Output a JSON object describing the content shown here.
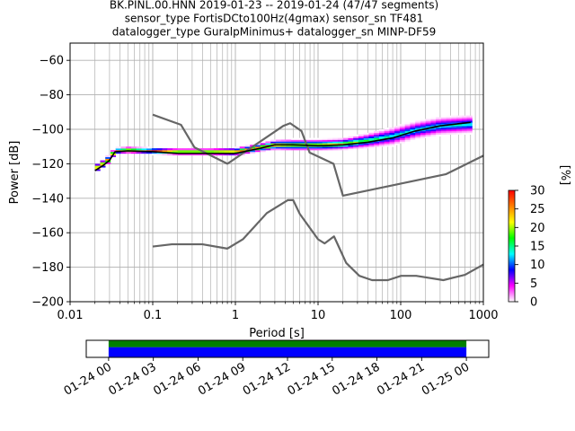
{
  "title_lines": [
    "BK.PINL.00.HNN   2019-01-23 -- 2019-01-24  (47/47 segments)",
    "sensor_type FortisDCto100Hz(4gmax) sensor_sn TF481",
    "datalogger_type GuralpMinimus+ datalogger_sn MINP-DF59"
  ],
  "chart_data": [
    {
      "type": "heatmap",
      "subtype": "probabilistic-power-spectral-density",
      "xlabel": "Period [s]",
      "ylabel": "Power [dB]",
      "xscale": "log",
      "xlim": [
        0.01,
        1000
      ],
      "ylim": [
        -200,
        -50
      ],
      "x_ticks": [
        0.01,
        0.1,
        1,
        10,
        100,
        1000
      ],
      "x_tick_labels": [
        "0.01",
        "0.1",
        "1",
        "10",
        "100",
        "1000"
      ],
      "y_ticks": [
        -200,
        -180,
        -160,
        -140,
        -120,
        -100,
        -80,
        -60
      ],
      "y_tick_labels": [
        "−200",
        "−180",
        "−160",
        "−140",
        "−120",
        "−100",
        "−80",
        "−60"
      ],
      "grid": true,
      "colorbar": {
        "label": "[%]",
        "range": [
          0,
          30
        ],
        "ticks": [
          0,
          5,
          10,
          15,
          20,
          25,
          30
        ],
        "tick_labels": [
          "0",
          "5",
          "10",
          "15",
          "20",
          "25",
          "30"
        ],
        "colors": [
          "#ffffff",
          "#ff00ff",
          "#0000ff",
          "#00ffff",
          "#00ff00",
          "#ffff00",
          "#ff8000",
          "#ff0000"
        ]
      },
      "mode_curve": {
        "color": "#000000",
        "points": [
          [
            0.02,
            -124
          ],
          [
            0.025,
            -121
          ],
          [
            0.03,
            -118
          ],
          [
            0.035,
            -113
          ],
          [
            0.05,
            -112.5
          ],
          [
            0.1,
            -113
          ],
          [
            0.2,
            -114
          ],
          [
            0.5,
            -114
          ],
          [
            1,
            -114
          ],
          [
            2,
            -111
          ],
          [
            3,
            -109
          ],
          [
            5,
            -109
          ],
          [
            10,
            -109.5
          ],
          [
            20,
            -109
          ],
          [
            40,
            -107.5
          ],
          [
            80,
            -105
          ],
          [
            150,
            -101
          ],
          [
            300,
            -98
          ],
          [
            700,
            -96
          ]
        ]
      },
      "density_band": [
        {
          "period": 0.02,
          "center": -123,
          "half_width": 2
        },
        {
          "period": 0.025,
          "center": -120,
          "half_width": 2
        },
        {
          "period": 0.03,
          "center": -117,
          "half_width": 2
        },
        {
          "period": 0.035,
          "center": -112.5,
          "half_width": 1.5
        },
        {
          "period": 0.05,
          "center": -112,
          "half_width": 1.5
        },
        {
          "period": 0.1,
          "center": -112.5,
          "half_width": 1.5
        },
        {
          "period": 0.2,
          "center": -113,
          "half_width": 1.5
        },
        {
          "period": 0.5,
          "center": -113,
          "half_width": 1.5
        },
        {
          "period": 1,
          "center": -113,
          "half_width": 2
        },
        {
          "period": 2,
          "center": -110.5,
          "half_width": 2
        },
        {
          "period": 3,
          "center": -109,
          "half_width": 2.5
        },
        {
          "period": 5,
          "center": -109,
          "half_width": 3
        },
        {
          "period": 10,
          "center": -109,
          "half_width": 3
        },
        {
          "period": 20,
          "center": -108.5,
          "half_width": 3
        },
        {
          "period": 40,
          "center": -106.5,
          "half_width": 4
        },
        {
          "period": 80,
          "center": -104,
          "half_width": 5
        },
        {
          "period": 150,
          "center": -100.5,
          "half_width": 5
        },
        {
          "period": 300,
          "center": -98,
          "half_width": 5
        },
        {
          "period": 700,
          "center": -97,
          "half_width": 5
        }
      ],
      "reference_curves": [
        {
          "role": "high-noise-model",
          "color": "#666666",
          "points": [
            [
              0.1,
              -91.5
            ],
            [
              0.22,
              -97.4
            ],
            [
              0.32,
              -110.5
            ],
            [
              0.8,
              -120
            ],
            [
              3.8,
              -98
            ],
            [
              4.6,
              -96.5
            ],
            [
              6.3,
              -101
            ],
            [
              7.9,
              -113.5
            ],
            [
              15.4,
              -120
            ],
            [
              20,
              -138.5
            ],
            [
              354.8,
              -126
            ],
            [
              10000,
              -91.5
            ]
          ]
        },
        {
          "role": "low-noise-model",
          "color": "#666666",
          "points": [
            [
              0.1,
              -168
            ],
            [
              0.17,
              -166.7
            ],
            [
              0.4,
              -166.7
            ],
            [
              0.8,
              -169.2
            ],
            [
              1.24,
              -163.7
            ],
            [
              2.4,
              -148.6
            ],
            [
              4.3,
              -141.1
            ],
            [
              5,
              -141.1
            ],
            [
              6,
              -149
            ],
            [
              10,
              -163.8
            ],
            [
              12,
              -166.2
            ],
            [
              15.6,
              -162.1
            ],
            [
              21.9,
              -177.5
            ],
            [
              31.6,
              -185
            ],
            [
              45,
              -187.5
            ],
            [
              70,
              -187.5
            ],
            [
              101,
              -185
            ],
            [
              154,
              -185
            ],
            [
              328,
              -187.5
            ],
            [
              600,
              -184.4
            ],
            [
              10000,
              -151.5
            ]
          ]
        }
      ]
    },
    {
      "type": "timeline",
      "subtype": "data-coverage",
      "xlim": [
        "2019-01-23 22:30",
        "2019-01-25 01:30"
      ],
      "x_ticks": [
        "2019-01-24 00:00",
        "2019-01-24 03:00",
        "2019-01-24 06:00",
        "2019-01-24 09:00",
        "2019-01-24 12:00",
        "2019-01-24 15:00",
        "2019-01-24 18:00",
        "2019-01-24 21:00",
        "2019-01-25 00:00"
      ],
      "x_tick_labels": [
        "01-24 00",
        "01-24 03",
        "01-24 06",
        "01-24 09",
        "01-24 12",
        "01-24 15",
        "01-24 18",
        "01-24 21",
        "01-25 00"
      ],
      "tick_label_rotation_deg": 30,
      "series": [
        {
          "role": "data-available",
          "color": "#0000ff",
          "start": "2019-01-24 00:00",
          "end": "2019-01-25 00:00"
        },
        {
          "role": "used-in-psd",
          "color": "#008000",
          "start": "2019-01-24 00:00",
          "end": "2019-01-25 00:00"
        }
      ]
    }
  ]
}
